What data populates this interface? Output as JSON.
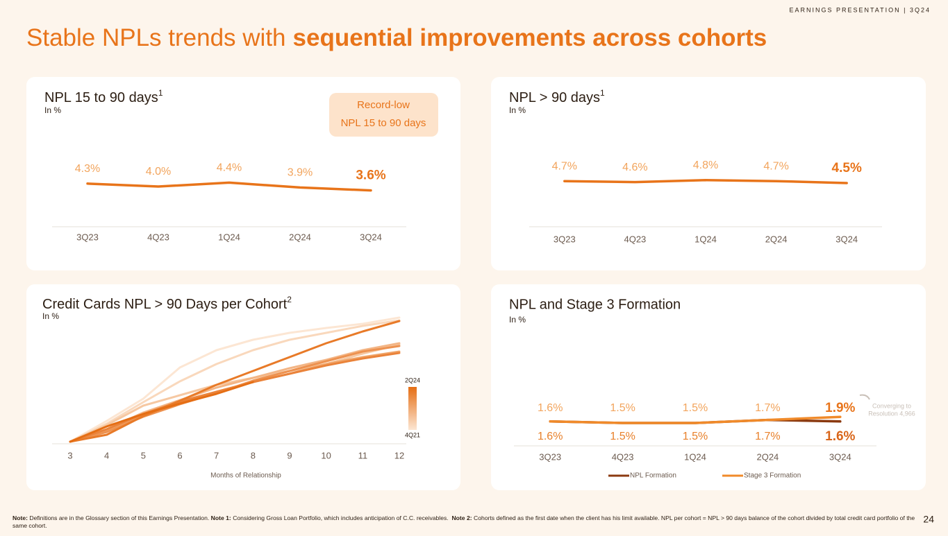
{
  "header": {
    "tag": "EARNINGS PRESENTATION | 3Q24",
    "title": "Stable NPLs trends with",
    "title_bold": "sequential improvements across cohorts"
  },
  "chart_data": [
    {
      "type": "line",
      "title": "NPL 15 to 90 days",
      "title_superscript": "1",
      "subtitle": "In %",
      "badge": [
        "Record-low",
        "NPL 15 to 90 days"
      ],
      "categories": [
        "3Q23",
        "4Q23",
        "1Q24",
        "2Q24",
        "3Q24"
      ],
      "values": [
        4.3,
        4.0,
        4.4,
        3.9,
        3.6
      ],
      "value_labels": [
        "4.3%",
        "4.0%",
        "4.4%",
        "3.9%",
        "3.6%"
      ],
      "color": "#e8741a"
    },
    {
      "type": "line",
      "title": "NPL > 90 days",
      "title_superscript": "1",
      "subtitle": "In %",
      "categories": [
        "3Q23",
        "4Q23",
        "1Q24",
        "2Q24",
        "3Q24"
      ],
      "values": [
        4.7,
        4.6,
        4.8,
        4.7,
        4.5
      ],
      "value_labels": [
        "4.7%",
        "4.6%",
        "4.8%",
        "4.7%",
        "4.5%"
      ],
      "color": "#e8741a"
    },
    {
      "type": "line",
      "title": "Credit Cards NPL > 90 Days per Cohort",
      "title_superscript": "2",
      "subtitle": "In %",
      "xlabel": "Months of Relationship",
      "x": [
        3,
        4,
        5,
        6,
        7,
        8,
        9,
        10,
        11,
        12
      ],
      "xlim": [
        3,
        12
      ],
      "legend_labels": [
        "2Q24",
        "4Q21"
      ],
      "series": [
        {
          "color": "#fce6d3",
          "values": [
            0.4,
            1.9,
            3.5,
            5.75,
            7.0,
            7.75,
            8.25,
            8.6,
            8.9,
            9.35
          ]
        },
        {
          "color": "#f9d8bc",
          "values": [
            0.4,
            1.7,
            3.25,
            4.75,
            6.0,
            7.0,
            7.75,
            8.25,
            8.75,
            9.15
          ]
        },
        {
          "color": "#f6c8a2",
          "values": [
            0.4,
            1.6,
            3.0,
            3.75,
            4.5,
            5.0,
            5.5,
            6.0,
            6.75,
            7.4
          ]
        },
        {
          "color": "#f3b585",
          "values": [
            0.4,
            1.3,
            2.5,
            3.4,
            4.3,
            5.0,
            5.7,
            6.3,
            7.0,
            7.5
          ]
        },
        {
          "color": "#f0a468",
          "values": [
            0.4,
            1.2,
            2.3,
            3.2,
            4.0,
            4.7,
            5.3,
            6.0,
            6.5,
            6.9
          ]
        },
        {
          "color": "#ed9250",
          "values": [
            0.4,
            1.1,
            2.2,
            3.1,
            3.9,
            4.8,
            5.5,
            6.2,
            6.9,
            7.3
          ]
        },
        {
          "color": "#ea833a",
          "values": [
            0.4,
            1.3,
            2.4,
            3.3,
            4.0,
            4.7,
            5.3,
            5.9,
            6.4,
            6.8
          ]
        },
        {
          "color": "#e87a28",
          "values": [
            0.4,
            0.9,
            2.25,
            3.35,
            4.5,
            5.5,
            6.5,
            7.5,
            8.35,
            9.1
          ]
        },
        {
          "color": "#e56e14",
          "values": [
            0.4,
            1.5,
            2.4,
            3.15,
            3.85,
            4.7,
            null,
            null,
            null,
            null
          ]
        }
      ]
    },
    {
      "type": "line",
      "title": "NPL and Stage 3 Formation",
      "subtitle": "In %",
      "categories": [
        "3Q23",
        "4Q23",
        "1Q24",
        "2Q24",
        "3Q24"
      ],
      "annotation": [
        "Converging to",
        "Resolution 4,966"
      ],
      "series": [
        {
          "name": "NPL Formation",
          "color": "#8b3a10",
          "values": [
            1.6,
            1.5,
            1.5,
            1.7,
            1.6
          ],
          "value_labels": [
            "1.6%",
            "1.5%",
            "1.5%",
            "1.7%",
            "1.6%"
          ]
        },
        {
          "name": "Stage 3 Formation",
          "color": "#f08a2a",
          "values": [
            1.6,
            1.5,
            1.5,
            1.7,
            1.9
          ],
          "value_labels": [
            "1.6%",
            "1.5%",
            "1.5%",
            "1.7%",
            "1.9%"
          ]
        }
      ]
    }
  ],
  "footnote": [
    "Note:",
    "Definitions are in the Glossary section of this Earnings Presentation.",
    "Note 1:",
    "Considering Gross Loan Portfolio, which includes anticipation of C.C. receivables.",
    "Note 2:",
    "Cohorts defined as the first date when the client has his limit available. NPL per cohort = NPL > 90 days balance of the cohort divided by total credit card portfolio of the same cohort."
  ],
  "page_number": "24"
}
